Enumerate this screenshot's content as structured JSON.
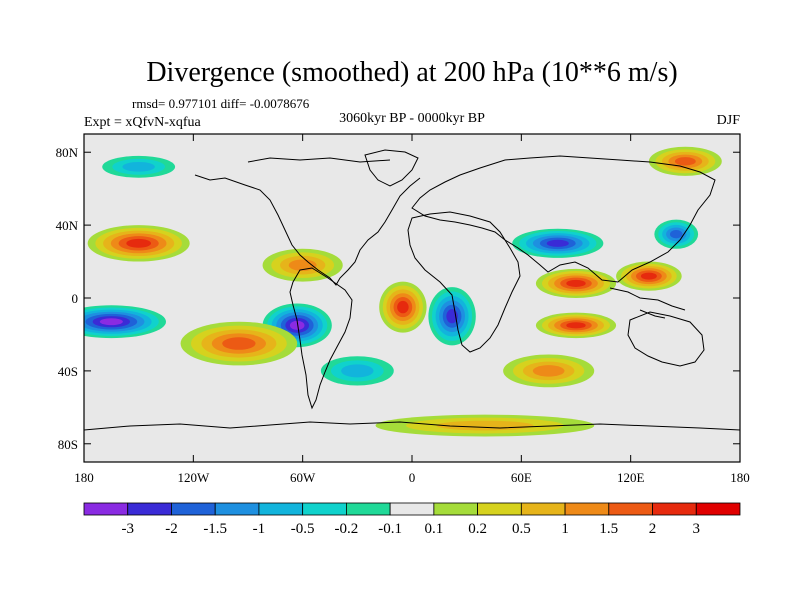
{
  "chart_data": {
    "type": "heatmap",
    "title": "Divergence (smoothed) at 200 hPa (10**6 m/s)",
    "stats": "rmsd= 0.977101 diff= -0.0078676",
    "center_label": "3060kyr BP - 0000kyr BP",
    "left_label": "Expt = xQfvN-xqfua",
    "right_label": "DJF",
    "x_ticks": [
      "180",
      "120W",
      "60W",
      "0",
      "60E",
      "120E",
      "180"
    ],
    "y_ticks": [
      "80N",
      "40N",
      "0",
      "40S",
      "80S"
    ],
    "xlim": [
      -180,
      180
    ],
    "ylim": [
      -90,
      90
    ],
    "levels": [
      "-3",
      "-2",
      "-1.5",
      "-1",
      "-0.5",
      "-0.2",
      "-0.1",
      "0.1",
      "0.2",
      "0.5",
      "1",
      "1.5",
      "2",
      "3"
    ],
    "colors": [
      "#8a2be2",
      "#3a2bd6",
      "#1f62d8",
      "#1e90e0",
      "#12b4dc",
      "#10d2cc",
      "#20d998",
      "#e8e8e8",
      "#a5dc3a",
      "#d6d21e",
      "#e6b41a",
      "#ee8a18",
      "#ec5a14",
      "#e62a0e",
      "#e00000"
    ],
    "features": [
      {
        "name": "s-pacific-minimum",
        "lon": -165,
        "lat": -13,
        "rlon": 30,
        "rlat": 9,
        "value": -3.2
      },
      {
        "name": "s-america-minimum",
        "lon": -63,
        "lat": -15,
        "rlon": 19,
        "rlat": 12,
        "value": -3.0
      },
      {
        "name": "s-atlantic-minimum",
        "lon": 22,
        "lat": -10,
        "rlon": 13,
        "rlat": 16,
        "value": -2.9
      },
      {
        "name": "asia-minimum",
        "lon": 80,
        "lat": 30,
        "rlon": 25,
        "rlat": 8,
        "value": -2.0
      },
      {
        "name": "nw-pacific-minimum",
        "lon": 145,
        "lat": 35,
        "rlon": 12,
        "rlat": 8,
        "value": -1.6
      },
      {
        "name": "ne-pacific-maximum",
        "lon": -150,
        "lat": 30,
        "rlon": 28,
        "rlat": 10,
        "value": 2.4
      },
      {
        "name": "s-pacific-maximum",
        "lon": -95,
        "lat": -25,
        "rlon": 32,
        "rlat": 12,
        "value": 1.6
      },
      {
        "name": "caribbean-maximum",
        "lon": -60,
        "lat": 18,
        "rlon": 22,
        "rlat": 9,
        "value": 1.4
      },
      {
        "name": "atlantic-maximum",
        "lon": -5,
        "lat": -5,
        "rlon": 13,
        "rlat": 14,
        "value": 2.2
      },
      {
        "name": "india-maximum",
        "lon": 90,
        "lat": 8,
        "rlon": 22,
        "rlat": 8,
        "value": 2.3
      },
      {
        "name": "maritime-maximum",
        "lon": 130,
        "lat": 12,
        "rlon": 18,
        "rlat": 8,
        "value": 2.6
      },
      {
        "name": "indian-ocean-maximum",
        "lon": 90,
        "lat": -15,
        "rlon": 22,
        "rlat": 7,
        "value": 2.4
      },
      {
        "name": "s-indian-maximum",
        "lon": 75,
        "lat": -40,
        "rlon": 25,
        "rlat": 9,
        "value": 1.2
      },
      {
        "name": "arctic-maximum",
        "lon": 150,
        "lat": 75,
        "rlon": 20,
        "rlat": 8,
        "value": 2.0
      },
      {
        "name": "n-pacific-minimum",
        "lon": -150,
        "lat": 72,
        "rlon": 20,
        "rlat": 6,
        "value": -0.8
      },
      {
        "name": "s-atlantic-minimum-2",
        "lon": -30,
        "lat": -40,
        "rlon": 20,
        "rlat": 8,
        "value": -0.6
      },
      {
        "name": "southern-ocean-band",
        "lon": 40,
        "lat": -70,
        "rlon": 60,
        "rlat": 6,
        "value": 0.6
      }
    ]
  }
}
